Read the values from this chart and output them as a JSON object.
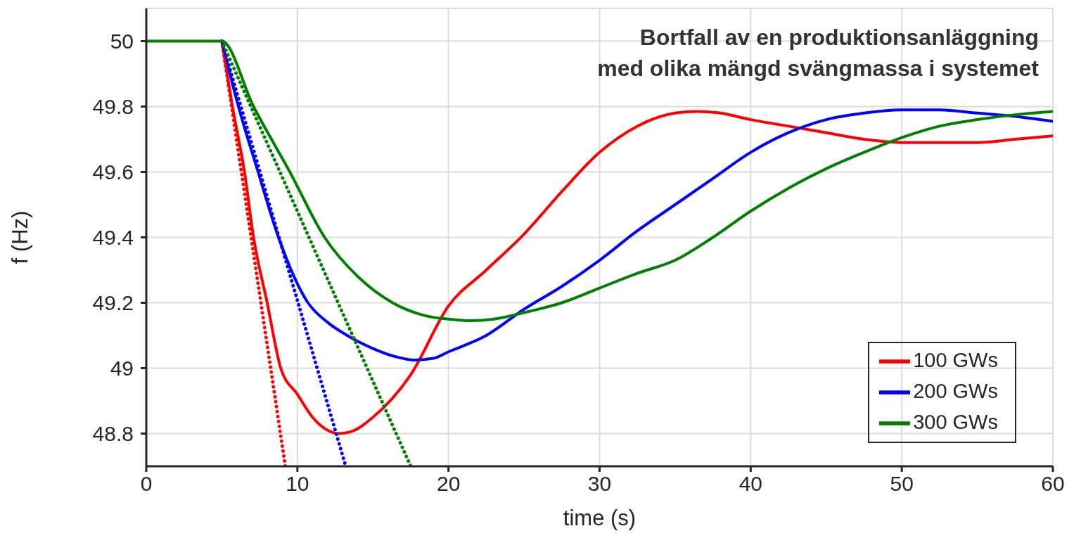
{
  "chart_data": {
    "type": "line",
    "title": "Bortfall av en produktionsanläggning\nmed olika mängd svängmassa i systemet",
    "xlabel": "time (s)",
    "ylabel": "f (Hz)",
    "xlim": [
      0,
      60
    ],
    "xticks": [
      0,
      10,
      20,
      30,
      40,
      50,
      60
    ],
    "ylim": [
      48.7,
      50.1
    ],
    "yticks": [
      {
        "value": 48.8,
        "label": "48.8"
      },
      {
        "value": 49,
        "label": "49"
      },
      {
        "value": 49.2,
        "label": "49.2"
      },
      {
        "value": 49.4,
        "label": "49.4"
      },
      {
        "value": 49.6,
        "label": "49.6"
      },
      {
        "value": 49.8,
        "label": "49.8"
      },
      {
        "value": 50,
        "label": "50"
      }
    ],
    "grid": true,
    "legend": "bottom right",
    "line_style": "solid",
    "marker": "none",
    "series": [
      {
        "name": "100 GWs",
        "color": "#ff0000",
        "x": [
          5,
          5.7,
          6.5,
          7.1,
          8,
          8.9,
          10,
          11,
          12,
          12.7,
          13.5,
          15,
          17.5,
          20,
          22.5,
          25,
          27.5,
          30,
          32.5,
          35,
          36.5,
          38,
          40,
          42.5,
          45,
          47.5,
          50,
          52.5,
          55,
          57.5,
          60
        ],
        "values": [
          50,
          49.8,
          49.6,
          49.4,
          49.2,
          49,
          48.92,
          48.85,
          48.81,
          48.8,
          48.805,
          48.85,
          48.98,
          49.19,
          49.3,
          49.41,
          49.54,
          49.66,
          49.74,
          49.78,
          49.785,
          49.78,
          49.76,
          49.74,
          49.72,
          49.7,
          49.69,
          49.69,
          49.69,
          49.7,
          49.71
        ]
      },
      {
        "name": "200 GWs",
        "color": "#0000ff",
        "x": [
          5,
          6.1,
          7.4,
          8.75,
          10.7,
          12,
          13.3,
          15,
          16.5,
          17.7,
          19,
          20,
          22.5,
          25,
          27.5,
          30,
          32.5,
          35,
          37.5,
          40,
          42.5,
          45,
          47.5,
          50,
          52.5,
          55,
          57.5,
          60
        ],
        "values": [
          50,
          49.8,
          49.6,
          49.4,
          49.2,
          49.14,
          49.1,
          49.06,
          49.035,
          49.025,
          49.03,
          49.05,
          49.1,
          49.18,
          49.25,
          49.33,
          49.42,
          49.5,
          49.58,
          49.66,
          49.72,
          49.76,
          49.78,
          49.79,
          49.79,
          49.78,
          49.77,
          49.755
        ]
      },
      {
        "name": "300 GWs",
        "color": "#007f00",
        "x": [
          0,
          5,
          7.1,
          9.5,
          11.8,
          14,
          16.3,
          18.5,
          20,
          21.5,
          23,
          25,
          27.5,
          30,
          32.5,
          35,
          37.5,
          40,
          42.5,
          45,
          47.5,
          50,
          52.5,
          55,
          57.5,
          60
        ],
        "values": [
          50,
          50,
          49.8,
          49.6,
          49.4,
          49.28,
          49.2,
          49.16,
          49.15,
          49.145,
          49.15,
          49.17,
          49.2,
          49.245,
          49.29,
          49.33,
          49.4,
          49.48,
          49.55,
          49.61,
          49.66,
          49.705,
          49.74,
          49.76,
          49.775,
          49.785
        ]
      },
      {
        "color": "#ff0000",
        "line_style": "dotted",
        "x": [
          5,
          9.2
        ],
        "values": [
          50,
          48.7
        ]
      },
      {
        "color": "#0000ff",
        "line_style": "dotted",
        "x": [
          5,
          13.2
        ],
        "values": [
          50,
          48.7
        ]
      },
      {
        "color": "#007f00",
        "line_style": "dotted",
        "x": [
          5,
          17.5
        ],
        "values": [
          50,
          48.7
        ]
      }
    ]
  }
}
